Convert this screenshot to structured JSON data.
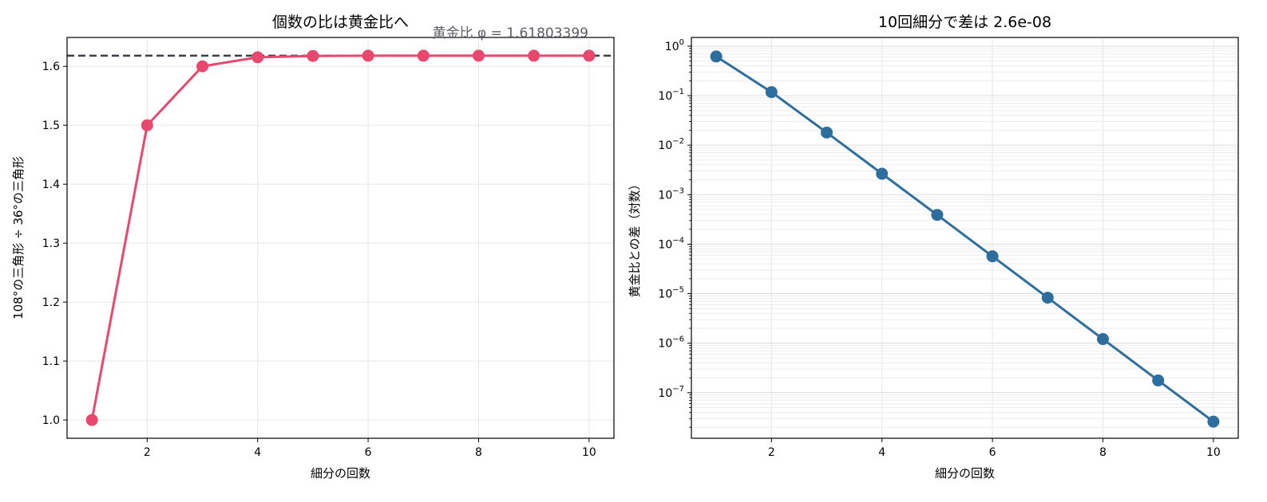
{
  "chart_data": [
    {
      "type": "line",
      "title": "個数の比は黄金比へ",
      "xlabel": "細分の回数",
      "ylabel": "108°の三角形 ÷ 36°の三角形",
      "x": [
        1,
        2,
        3,
        4,
        5,
        6,
        7,
        8,
        9,
        10
      ],
      "xlim": [
        0.55,
        10.45
      ],
      "ylim": [
        0.969,
        1.649
      ],
      "xticks": [
        2,
        4,
        6,
        8,
        10
      ],
      "yticks": [
        1.0,
        1.1,
        1.2,
        1.3,
        1.4,
        1.5,
        1.6
      ],
      "ytick_labels": [
        "1.0",
        "1.1",
        "1.2",
        "1.3",
        "1.4",
        "1.5",
        "1.6"
      ],
      "grid": true,
      "series": [
        {
          "color": "#e8476e",
          "values": [
            1.0,
            1.5,
            1.6,
            1.6154,
            1.6176,
            1.618,
            1.618,
            1.618,
            1.618,
            1.618
          ]
        }
      ],
      "reference_line": {
        "y": 1.61803399,
        "label": "黄金比 φ = 1.61803399",
        "color": "#3a3f4a",
        "style": "dashed"
      }
    },
    {
      "type": "line",
      "title": "10回細分で差は 2.6e-08",
      "xlabel": "細分の回数",
      "ylabel": "黄金比との差（対数）",
      "x": [
        1,
        2,
        3,
        4,
        5,
        6,
        7,
        8,
        9,
        10
      ],
      "xlim": [
        0.55,
        10.45
      ],
      "ylim": [
        1.2e-08,
        1.5
      ],
      "xticks": [
        2,
        4,
        6,
        8,
        10
      ],
      "yscale": "log",
      "yticks_exp": [
        0,
        -1,
        -2,
        -3,
        -4,
        -5,
        -6,
        -7
      ],
      "ytick_base": "10",
      "grid": true,
      "series": [
        {
          "color": "#2e6e9e",
          "values": [
            0.618,
            0.118,
            0.018,
            0.00265,
            0.00039,
            5.69e-05,
            8.3e-06,
            1.21e-06,
            1.77e-07,
            2.6e-08
          ]
        }
      ]
    }
  ]
}
